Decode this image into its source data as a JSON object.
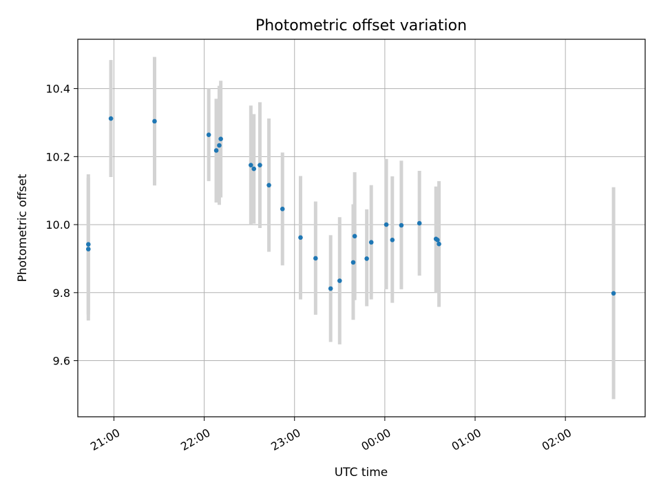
{
  "chart_data": {
    "type": "scatter",
    "title": "Photometric offset variation",
    "xlabel": "UTC time",
    "ylabel": "Photometric offset",
    "x_axis_kind": "time",
    "x_tick_labels": [
      "21:00",
      "22:00",
      "23:00",
      "00:00",
      "01:00",
      "02:00"
    ],
    "y_tick_labels": [
      "9.6",
      "9.8",
      "10.0",
      "10.2",
      "10.4"
    ],
    "y_ticks": [
      9.6,
      9.8,
      10.0,
      10.2,
      10.4
    ],
    "ylim": [
      9.435,
      10.545
    ],
    "xlim": [
      "20:36",
      "02:53"
    ],
    "grid": true,
    "colors": {
      "points": "#1f77b4",
      "error_bars": "#d3d3d3",
      "grid": "#b0b0b0",
      "axes": "#000000"
    },
    "series": [
      {
        "points": [
          {
            "t": "20:43",
            "y": 9.928,
            "lo": 9.718,
            "hi": 10.138
          },
          {
            "t": "20:43",
            "y": 9.942,
            "lo": 9.735,
            "hi": 10.148
          },
          {
            "t": "20:58",
            "y": 10.312,
            "lo": 10.14,
            "hi": 10.484
          },
          {
            "t": "21:27",
            "y": 10.304,
            "lo": 10.115,
            "hi": 10.493
          },
          {
            "t": "22:03",
            "y": 10.264,
            "lo": 10.128,
            "hi": 10.4
          },
          {
            "t": "22:08",
            "y": 10.218,
            "lo": 10.065,
            "hi": 10.37
          },
          {
            "t": "22:10",
            "y": 10.233,
            "lo": 10.058,
            "hi": 10.408
          },
          {
            "t": "22:11",
            "y": 10.252,
            "lo": 10.08,
            "hi": 10.423
          },
          {
            "t": "22:31",
            "y": 10.175,
            "lo": 10.0,
            "hi": 10.35
          },
          {
            "t": "22:33",
            "y": 10.164,
            "lo": 10.003,
            "hi": 10.325
          },
          {
            "t": "22:37",
            "y": 10.175,
            "lo": 9.99,
            "hi": 10.36
          },
          {
            "t": "22:43",
            "y": 10.116,
            "lo": 9.92,
            "hi": 10.312
          },
          {
            "t": "22:52",
            "y": 10.046,
            "lo": 9.88,
            "hi": 10.212
          },
          {
            "t": "23:04",
            "y": 9.962,
            "lo": 9.78,
            "hi": 10.143
          },
          {
            "t": "23:14",
            "y": 9.901,
            "lo": 9.735,
            "hi": 10.068
          },
          {
            "t": "23:24",
            "y": 9.812,
            "lo": 9.655,
            "hi": 9.969
          },
          {
            "t": "23:30",
            "y": 9.835,
            "lo": 9.648,
            "hi": 10.022
          },
          {
            "t": "23:39",
            "y": 9.889,
            "lo": 9.72,
            "hi": 10.06
          },
          {
            "t": "23:40",
            "y": 9.966,
            "lo": 9.778,
            "hi": 10.154
          },
          {
            "t": "23:48",
            "y": 9.9,
            "lo": 9.76,
            "hi": 10.045
          },
          {
            "t": "23:51",
            "y": 9.948,
            "lo": 9.78,
            "hi": 10.116
          },
          {
            "t": "00:01",
            "y": 10.0,
            "lo": 9.81,
            "hi": 10.193
          },
          {
            "t": "00:05",
            "y": 9.955,
            "lo": 9.77,
            "hi": 10.142
          },
          {
            "t": "00:11",
            "y": 9.998,
            "lo": 9.81,
            "hi": 10.188
          },
          {
            "t": "00:23",
            "y": 10.004,
            "lo": 9.85,
            "hi": 10.158
          },
          {
            "t": "00:34",
            "y": 9.958,
            "lo": 9.8,
            "hi": 10.112
          },
          {
            "t": "00:35",
            "y": 9.955,
            "lo": 9.8,
            "hi": 10.11
          },
          {
            "t": "00:36",
            "y": 9.943,
            "lo": 9.758,
            "hi": 10.128
          },
          {
            "t": "02:32",
            "y": 9.798,
            "lo": 9.487,
            "hi": 10.11
          }
        ]
      }
    ]
  }
}
